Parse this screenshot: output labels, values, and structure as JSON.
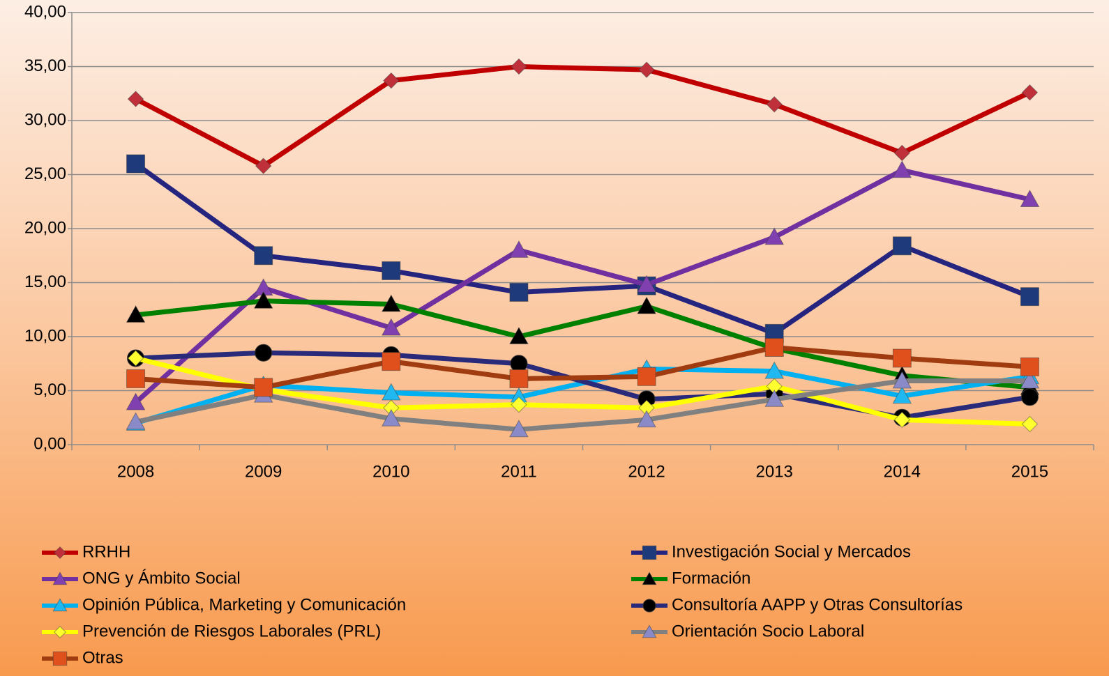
{
  "chart_data": {
    "type": "line",
    "categories": [
      "2008",
      "2009",
      "2010",
      "2011",
      "2012",
      "2013",
      "2014",
      "2015"
    ],
    "ylim": [
      0,
      40
    ],
    "yticks": [
      {
        "value": 0,
        "label": "0,00"
      },
      {
        "value": 5,
        "label": "5,00"
      },
      {
        "value": 10,
        "label": "10,00"
      },
      {
        "value": 15,
        "label": "15,00"
      },
      {
        "value": 20,
        "label": "20,00"
      },
      {
        "value": 25,
        "label": "25,00"
      },
      {
        "value": 30,
        "label": "30,00"
      },
      {
        "value": 35,
        "label": "35,00"
      },
      {
        "value": 40,
        "label": "40,00"
      }
    ],
    "grid": true,
    "legend": "bottom",
    "series": [
      {
        "name": "RRHH",
        "color": "#c00000",
        "marker": "diamond",
        "marker_color": "#c0303a",
        "values": [
          32.0,
          25.8,
          33.7,
          35.0,
          34.7,
          31.5,
          27.0,
          32.6
        ]
      },
      {
        "name": "Investigación Social y Mercados",
        "color": "#25257f",
        "marker": "square",
        "marker_color": "#1f3a7a",
        "values": [
          26.0,
          17.5,
          16.1,
          14.1,
          14.7,
          10.3,
          18.4,
          13.7
        ]
      },
      {
        "name": "ONG y Ámbito Social",
        "color": "#7030a0",
        "marker": "triangle",
        "marker_color": "#8040b0",
        "values": [
          3.9,
          14.5,
          10.8,
          18.0,
          14.8,
          19.2,
          25.4,
          22.7
        ]
      },
      {
        "name": "Formación",
        "color": "#008000",
        "marker": "triangle",
        "marker_color": "#000000",
        "values": [
          12.0,
          13.3,
          13.0,
          10.0,
          12.8,
          8.9,
          6.4,
          5.3
        ]
      },
      {
        "name": "Opinión Pública, Marketing y Comunicación",
        "color": "#00b0f0",
        "marker": "triangle",
        "marker_color": "#20b8f0",
        "values": [
          2.0,
          5.5,
          4.8,
          4.4,
          7.0,
          6.8,
          4.5,
          6.3
        ]
      },
      {
        "name": "Consultoría AAPP y Otras Consultorías",
        "color": "#2a2a7a",
        "marker": "circle",
        "marker_color": "#000000",
        "values": [
          8.0,
          8.5,
          8.3,
          7.5,
          4.2,
          4.7,
          2.5,
          4.4
        ]
      },
      {
        "name": "Prevención de Riesgos Laborales (PRL)",
        "color": "#ffff00",
        "marker": "diamond",
        "marker_color": "#ffff30",
        "values": [
          8.0,
          5.1,
          3.4,
          3.7,
          3.4,
          5.4,
          2.3,
          1.9
        ]
      },
      {
        "name": "Orientación Socio Laboral",
        "color": "#808080",
        "marker": "triangle",
        "marker_color": "#8a8ac8",
        "values": [
          2.1,
          4.6,
          2.4,
          1.4,
          2.3,
          4.2,
          5.9,
          5.9
        ]
      },
      {
        "name": "Otras",
        "color": "#a03c10",
        "marker": "square",
        "marker_color": "#e0501c",
        "values": [
          6.1,
          5.3,
          7.7,
          6.1,
          6.3,
          9.0,
          8.0,
          7.2
        ]
      }
    ]
  }
}
